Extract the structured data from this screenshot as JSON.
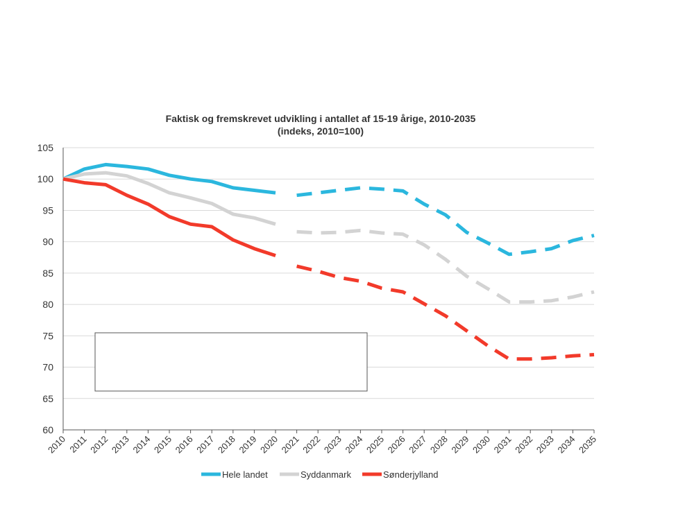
{
  "chart_data": {
    "type": "line",
    "title": "Faktisk og fremskrevet udvikling i antallet af 15-19 årige, 2010-2035",
    "subtitle": "(indeks, 2010=100)",
    "xlabel": "",
    "ylabel": "",
    "ylim": [
      60,
      105
    ],
    "yticks": [
      "60",
      "65",
      "70",
      "75",
      "80",
      "85",
      "90",
      "95",
      "100",
      "105"
    ],
    "categories": [
      "2010",
      "2011",
      "2012",
      "2013",
      "2014",
      "2015",
      "2016",
      "2017",
      "2018",
      "2019",
      "2020",
      "2021",
      "2022",
      "2023",
      "2024",
      "2025",
      "2026",
      "2027",
      "2028",
      "2029",
      "2030",
      "2031",
      "2032",
      "2033",
      "2034",
      "2035"
    ],
    "actual_through": "2020",
    "projection_style": "dashed",
    "grid": "horizontal",
    "legend_position": "bottom",
    "series": [
      {
        "name": "Hele landet",
        "color": "#2bb7de",
        "values": [
          100,
          101.6,
          102.3,
          102.0,
          101.6,
          100.6,
          100.0,
          99.6,
          98.6,
          98.2,
          97.8,
          97.4,
          97.8,
          98.2,
          98.6,
          98.4,
          98.1,
          96.0,
          94.3,
          91.5,
          89.8,
          88.0,
          88.4,
          88.9,
          90.2,
          91.0
        ]
      },
      {
        "name": "Syddanmark",
        "color": "#d3d3d3",
        "values": [
          100,
          100.8,
          101.0,
          100.5,
          99.3,
          97.8,
          97.0,
          96.1,
          94.4,
          93.8,
          92.8,
          91.6,
          91.4,
          91.5,
          91.8,
          91.4,
          91.2,
          89.5,
          87.2,
          84.5,
          82.5,
          80.4,
          80.4,
          80.6,
          81.2,
          82.0
        ]
      },
      {
        "name": "Sønderjylland",
        "color": "#f23a2a",
        "values": [
          100,
          99.4,
          99.1,
          97.4,
          96.0,
          94.0,
          92.8,
          92.4,
          90.3,
          88.9,
          87.8,
          86.1,
          85.3,
          84.3,
          83.7,
          82.6,
          82.0,
          80.1,
          78.2,
          75.8,
          73.4,
          71.3,
          71.3,
          71.5,
          71.8,
          72.0
        ]
      }
    ]
  }
}
